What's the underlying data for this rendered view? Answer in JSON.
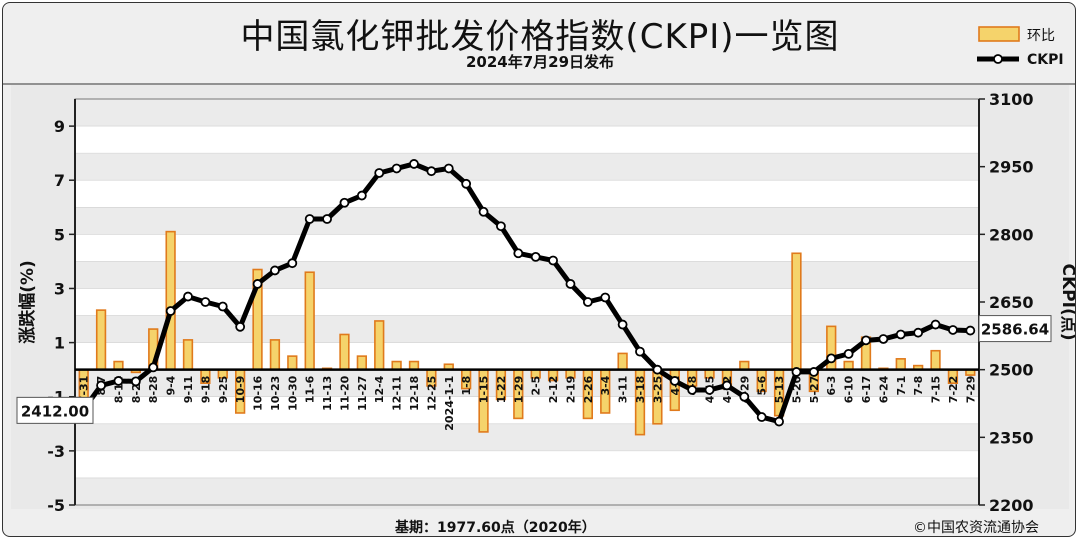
{
  "header": {
    "title": "中国氯化钾批发价格指数(CKPI)一览图",
    "subtitle": "2024年7月29日发布"
  },
  "footer": {
    "base": "基期：1977.60点（2020年）",
    "copyright": "©中国农资流通协会"
  },
  "colors": {
    "bar_fill": "#f5d36b",
    "bar_edge": "#e07a1c",
    "line": "#000000",
    "plot_bg": "#ffffff",
    "band_bg": "#ebebeb"
  },
  "chart_data": {
    "type": "bar+line",
    "title": "中国氯化钾批发价格指数(CKPI)一览图",
    "subtitle": "2024年7月29日发布",
    "ylabel_left": "涨跌幅(%)",
    "ylabel_right": "CKPI(点)",
    "ylim_left": [
      -5,
      10
    ],
    "ylim_right": [
      2200,
      3100
    ],
    "left_ticks": [
      "-5",
      "-3",
      "-1",
      "1",
      "3",
      "5",
      "7",
      "9"
    ],
    "right_ticks": [
      "2200",
      "2350",
      "2500",
      "2650",
      "2800",
      "2950",
      "3100"
    ],
    "legend": {
      "position": "top-right",
      "bar_label": "环比",
      "line_label": "CKPI"
    },
    "grid": true,
    "categories": [
      "7-31",
      "8-7",
      "8-14",
      "8-21",
      "8-28",
      "9-4",
      "9-11",
      "9-18",
      "9-25",
      "10-9",
      "10-16",
      "10-23",
      "10-30",
      "11-6",
      "11-13",
      "11-20",
      "11-27",
      "12-4",
      "12-11",
      "12-18",
      "12-25",
      "2024-1-1",
      "1-8",
      "1-15",
      "1-22",
      "1-29",
      "2-5",
      "2-12",
      "2-19",
      "2-26",
      "3-4",
      "3-11",
      "3-18",
      "3-25",
      "4-1",
      "4-8",
      "4-15",
      "4-22",
      "4-29",
      "5-6",
      "5-13",
      "5-20",
      "5-27",
      "6-3",
      "6-10",
      "6-17",
      "6-24",
      "7-1",
      "7-8",
      "7-15",
      "7-22",
      "7-29"
    ],
    "series": [
      {
        "name": "环比",
        "type": "bar",
        "values": [
          -1.2,
          2.2,
          0.3,
          -0.1,
          1.5,
          5.1,
          1.1,
          -0.5,
          -0.3,
          -1.6,
          3.7,
          1.1,
          0.5,
          3.6,
          0.05,
          1.3,
          0.5,
          1.8,
          0.3,
          0.3,
          -0.6,
          0.2,
          -0.7,
          -2.3,
          -1.1,
          -1.8,
          -0.3,
          -0.4,
          -0.3,
          -1.8,
          -1.6,
          0.6,
          -2.4,
          -2.0,
          -1.5,
          -0.6,
          -0.3,
          -0.7,
          0.3,
          -0.8,
          -1.7,
          4.3,
          -0.8,
          1.6,
          0.3,
          1.2,
          0.05,
          0.4,
          0.15,
          0.7,
          -0.5,
          -0.2
        ]
      },
      {
        "name": "CKPI",
        "type": "line",
        "values": [
          2412,
          2465,
          2475,
          2474,
          2505,
          2630,
          2662,
          2650,
          2640,
          2595,
          2690,
          2720,
          2736,
          2834,
          2834,
          2870,
          2886,
          2936,
          2946,
          2956,
          2940,
          2946,
          2912,
          2850,
          2818,
          2758,
          2750,
          2742,
          2690,
          2650,
          2660,
          2600,
          2540,
          2500,
          2475,
          2455,
          2455,
          2465,
          2440,
          2395,
          2385,
          2495,
          2495,
          2525,
          2535,
          2565,
          2568,
          2578,
          2582,
          2600,
          2588,
          2586.64
        ]
      }
    ],
    "annotations": {
      "start_value": "2412.00",
      "end_value": "2586.64"
    }
  }
}
